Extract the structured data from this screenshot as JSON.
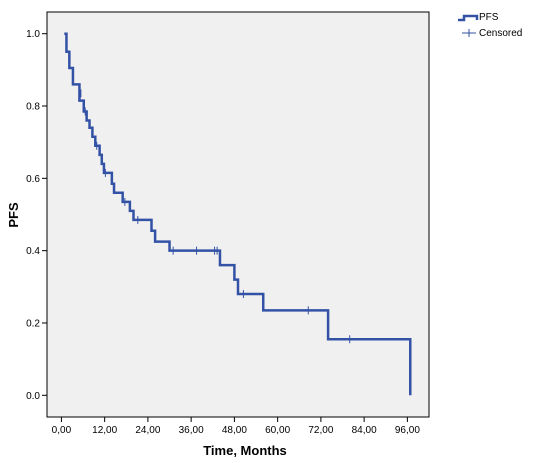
{
  "chart_data": {
    "type": "line",
    "subtype": "kaplan-meier",
    "title": "",
    "xlabel": "Time, Months",
    "ylabel": "PFS",
    "xlim": [
      -4,
      102
    ],
    "ylim": [
      -0.06,
      1.06
    ],
    "x_ticks": [
      0,
      12,
      24,
      36,
      48,
      60,
      72,
      84,
      96
    ],
    "x_tick_labels": [
      "0,00",
      "12,00",
      "24,00",
      "36,00",
      "48,00",
      "60,00",
      "72,00",
      "84,00",
      "96,00"
    ],
    "y_ticks": [
      0.0,
      0.2,
      0.4,
      0.6,
      0.8,
      1.0
    ],
    "y_tick_labels": [
      "0.0",
      "0.2",
      "0.4",
      "0.6",
      "0.8",
      "1.0"
    ],
    "grid": false,
    "legend_position": "top-right-outside",
    "background_color": "#f0f0f0",
    "series": [
      {
        "name": "PFS",
        "color": "#3352a6",
        "step_points": [
          [
            0.8,
            1.0
          ],
          [
            1.4,
            0.95
          ],
          [
            2.2,
            0.905
          ],
          [
            3.2,
            0.86
          ],
          [
            5.0,
            0.815
          ],
          [
            6.2,
            0.785
          ],
          [
            7.0,
            0.76
          ],
          [
            7.8,
            0.74
          ],
          [
            8.6,
            0.715
          ],
          [
            9.4,
            0.69
          ],
          [
            10.6,
            0.665
          ],
          [
            11.2,
            0.64
          ],
          [
            11.8,
            0.615
          ],
          [
            14.0,
            0.585
          ],
          [
            14.6,
            0.56
          ],
          [
            17.0,
            0.535
          ],
          [
            19.0,
            0.51
          ],
          [
            20.0,
            0.485
          ],
          [
            25.0,
            0.455
          ],
          [
            26.0,
            0.425
          ],
          [
            30.0,
            0.4
          ],
          [
            44.0,
            0.36
          ],
          [
            48.0,
            0.32
          ],
          [
            49.0,
            0.28
          ],
          [
            56.0,
            0.235
          ],
          [
            74.0,
            0.155
          ],
          [
            96.8,
            0.0
          ]
        ]
      },
      {
        "name": "Censored",
        "color": "#3352a6",
        "marker": "+",
        "points": [
          [
            5.4,
            0.835
          ],
          [
            6.6,
            0.785
          ],
          [
            9.8,
            0.69
          ],
          [
            12.2,
            0.615
          ],
          [
            17.6,
            0.535
          ],
          [
            21.2,
            0.485
          ],
          [
            31.0,
            0.4
          ],
          [
            37.5,
            0.4
          ],
          [
            42.5,
            0.4
          ],
          [
            43.2,
            0.4
          ],
          [
            50.5,
            0.28
          ],
          [
            68.5,
            0.235
          ],
          [
            80.0,
            0.155
          ]
        ]
      }
    ]
  }
}
